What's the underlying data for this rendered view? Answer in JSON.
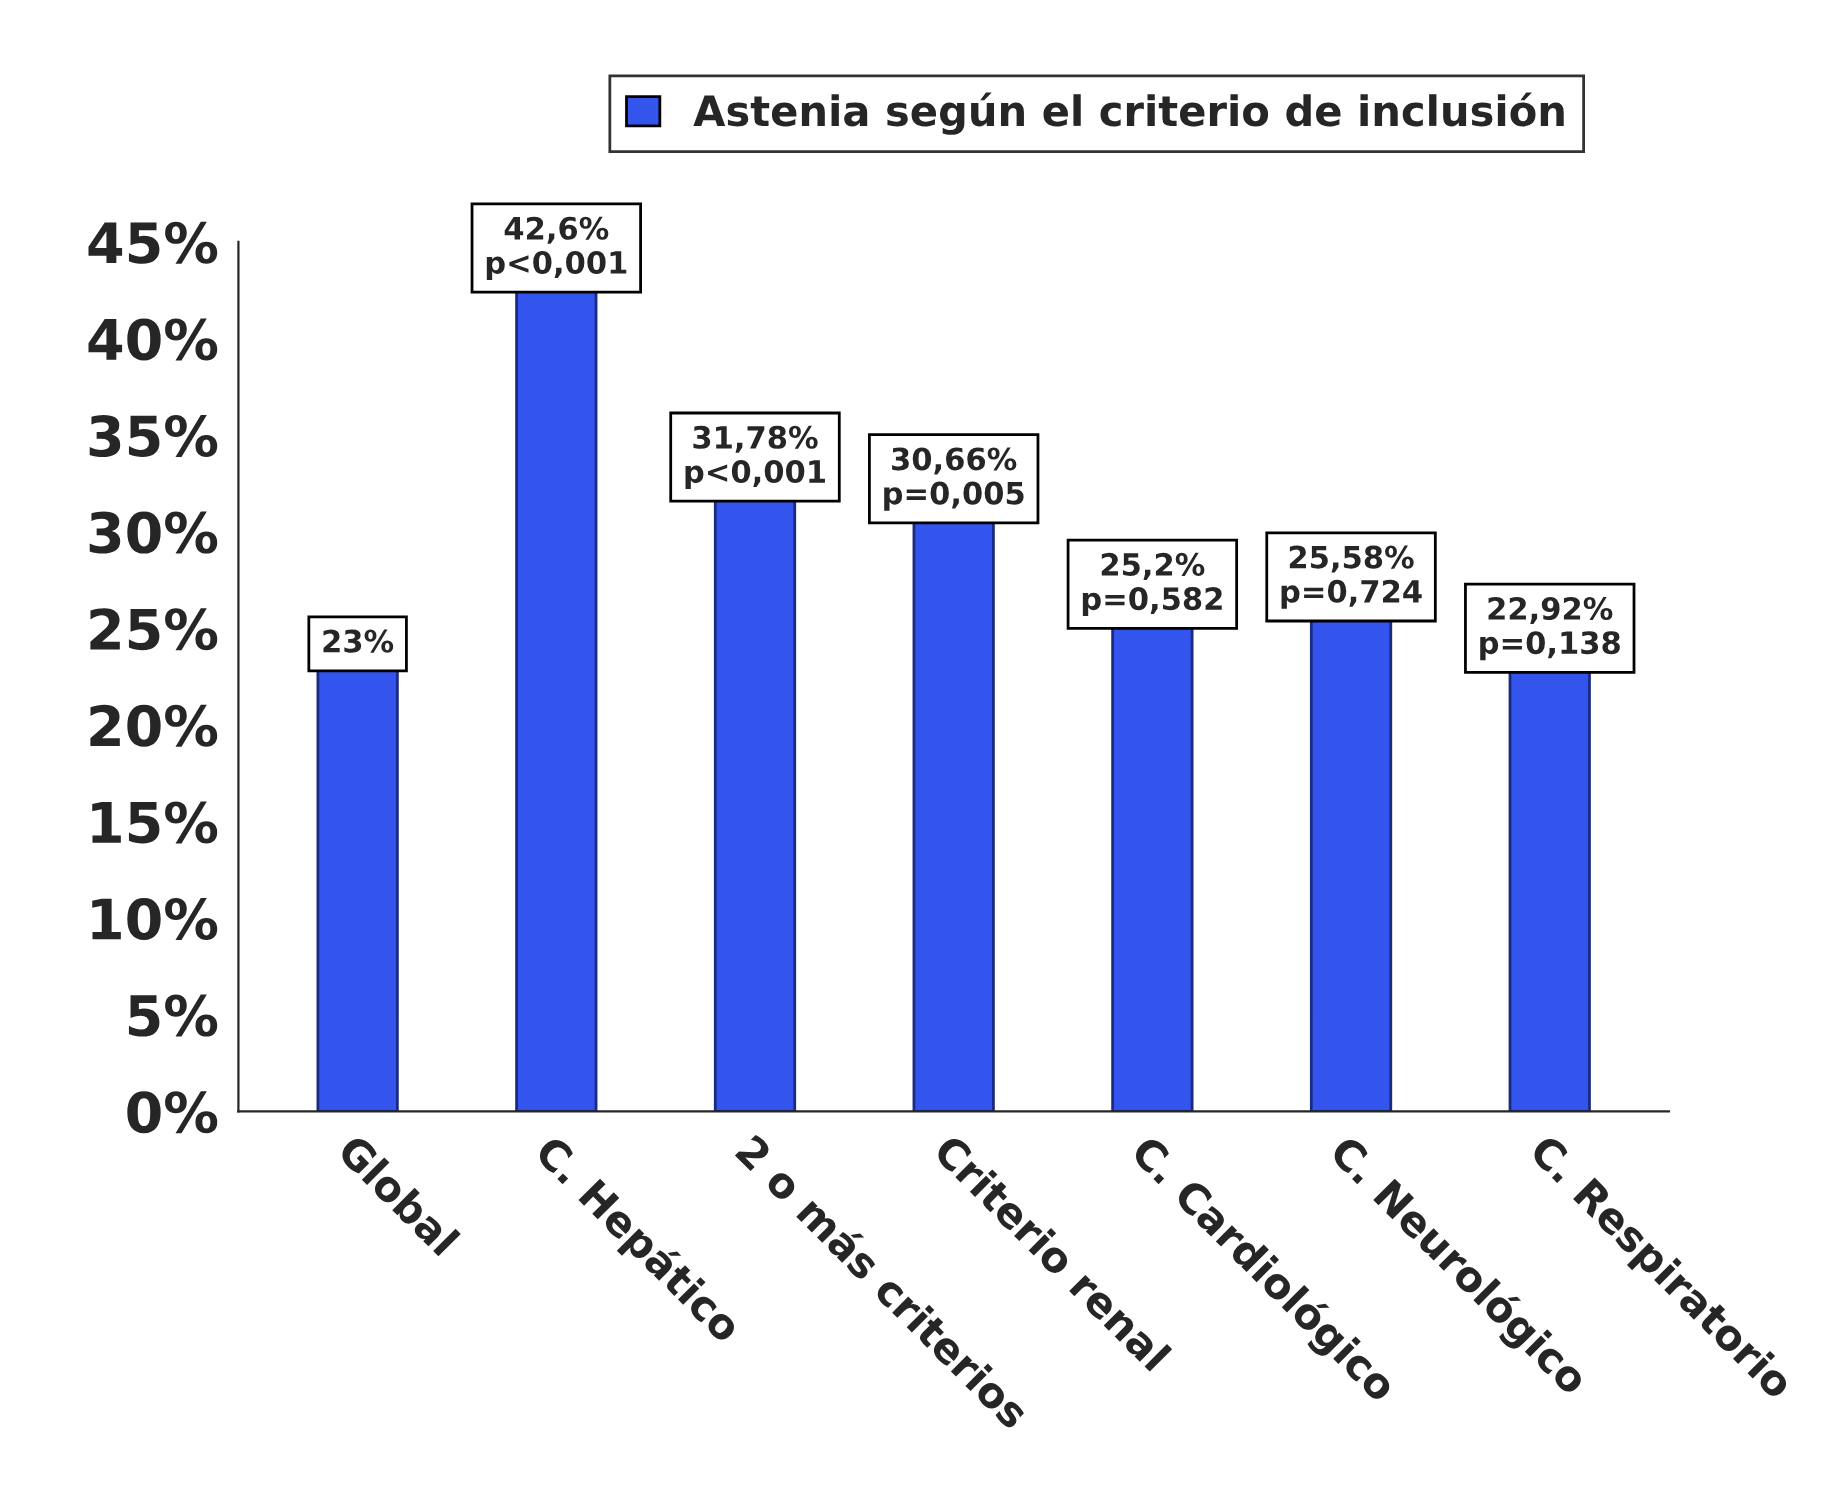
{
  "chart_data": {
    "type": "bar",
    "categories": [
      "Global",
      "C. Hepático",
      "2 o más criterios",
      "Criterio renal",
      "C. Cardiológico",
      "C. Neurológico",
      "C. Respiratorio"
    ],
    "series": [
      {
        "name": "Astenia según el criterio de inclusión",
        "color": "#3355ee",
        "values": [
          23,
          42.6,
          31.78,
          30.66,
          25.2,
          25.58,
          22.92
        ],
        "value_labels": [
          "23%",
          "42,6%\np<0,001",
          "31,78%\np<0,001",
          "30,66%\np=0,005",
          "25,2%\np=0,582",
          "25,58%\np=0,724",
          "22,92%\np=0,138"
        ]
      }
    ],
    "ylim": [
      0,
      45
    ],
    "yticks": [
      {
        "value": 0,
        "label": "0%"
      },
      {
        "value": 5,
        "label": "5%"
      },
      {
        "value": 10,
        "label": "10%"
      },
      {
        "value": 15,
        "label": "15%"
      },
      {
        "value": 20,
        "label": "20%"
      },
      {
        "value": 25,
        "label": "25%"
      },
      {
        "value": 30,
        "label": "30%"
      },
      {
        "value": 35,
        "label": "35%"
      },
      {
        "value": 40,
        "label": "40%"
      },
      {
        "value": 45,
        "label": "45%"
      }
    ],
    "legend": "top",
    "grid": false
  }
}
